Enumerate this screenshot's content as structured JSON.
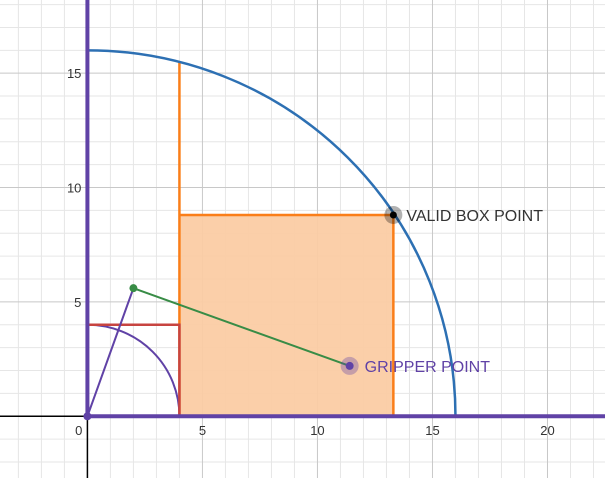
{
  "graph": {
    "x_range": [
      -3.8,
      22.5
    ],
    "y_range": [
      -2.7,
      18.2
    ],
    "major_step": 5,
    "minor_step": 1,
    "x_ticks": [
      {
        "value": 0,
        "label": "0"
      },
      {
        "value": 5,
        "label": "5"
      },
      {
        "value": 10,
        "label": "10"
      },
      {
        "value": 15,
        "label": "15"
      },
      {
        "value": 20,
        "label": "20"
      }
    ],
    "y_ticks": [
      {
        "value": 5,
        "label": "5"
      },
      {
        "value": 10,
        "label": "10"
      },
      {
        "value": 15,
        "label": "15"
      }
    ]
  },
  "colors": {
    "minor_grid": "#e6e6e6",
    "major_grid": "#c8c8c8",
    "axis": "#000000",
    "purple": "#6042a6",
    "blue": "#2d70b3",
    "orange": "#fa7e19",
    "orange_fill": "#fbcca4",
    "red": "#c74440",
    "green": "#388c46",
    "point_black": "#000000",
    "label_text": "#333333"
  },
  "shapes": {
    "outer_arc_radius": 16,
    "inner_arc_radius": 4,
    "orange_vertical_x": 4,
    "orange_vertical_top": 15.5,
    "orange_box": {
      "x1": 4,
      "y1": 0,
      "x2": 13.3,
      "y2": 8.8
    },
    "red_corner": {
      "x": 4,
      "y": 4
    },
    "arm_base": [
      0,
      0
    ],
    "arm_joint": [
      2,
      5.6
    ],
    "gripper_point": [
      11.4,
      2.2
    ],
    "valid_box_point": [
      13.3,
      8.8
    ]
  },
  "labels": {
    "valid_box_point": "VALID BOX POINT",
    "gripper_point": "GRIPPER POINT"
  }
}
